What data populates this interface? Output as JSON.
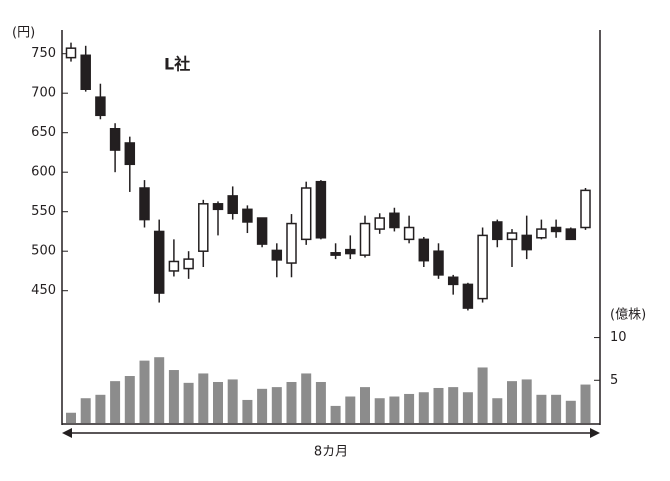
{
  "chart_data": {
    "type": "candlestick",
    "title": "L社",
    "y_label": "(円)",
    "y2_label": "(億株)",
    "x_label": "8カ月",
    "open": [
      745,
      748,
      695,
      655,
      637,
      580,
      525,
      475,
      478,
      500,
      560,
      570,
      553,
      542,
      501,
      485,
      515,
      588,
      498,
      502,
      495,
      528,
      548,
      515,
      515,
      500,
      467,
      458,
      440,
      537,
      515,
      520,
      517,
      530,
      528,
      530
    ],
    "high": [
      764,
      760,
      712,
      662,
      645,
      590,
      540,
      515,
      500,
      565,
      563,
      582,
      558,
      542,
      510,
      547,
      588,
      590,
      510,
      520,
      545,
      548,
      555,
      545,
      518,
      510,
      470,
      460,
      530,
      540,
      528,
      545,
      540,
      540,
      530,
      580
    ],
    "low": [
      740,
      702,
      667,
      600,
      575,
      530,
      435,
      468,
      465,
      480,
      520,
      540,
      523,
      505,
      467,
      467,
      508,
      515,
      490,
      490,
      492,
      522,
      525,
      510,
      480,
      465,
      445,
      425,
      435,
      505,
      480,
      490,
      515,
      517,
      515,
      527
    ],
    "close": [
      757,
      705,
      672,
      628,
      610,
      540,
      447,
      487,
      490,
      560,
      553,
      548,
      537,
      509,
      489,
      535,
      580,
      517,
      495,
      497,
      535,
      542,
      530,
      530,
      488,
      470,
      458,
      428,
      520,
      515,
      523,
      502,
      528,
      525,
      515,
      577
    ],
    "up_color": "#ffffff",
    "down_color": "#231f20",
    "ylim": [
      280,
      780
    ],
    "yticks": [
      450,
      500,
      550,
      600,
      650,
      700,
      750
    ],
    "volume": {
      "color": "#8c8c8c",
      "axis": "y2",
      "values": [
        1.2,
        2.9,
        3.3,
        4.9,
        5.5,
        7.3,
        7.7,
        6.2,
        4.7,
        5.8,
        4.8,
        5.1,
        2.7,
        4.0,
        4.2,
        4.8,
        5.8,
        4.8,
        2.0,
        3.1,
        4.2,
        2.9,
        3.1,
        3.4,
        3.6,
        4.1,
        4.2,
        3.6,
        6.5,
        2.9,
        4.9,
        5.1,
        3.3,
        3.3,
        2.6,
        4.5
      ]
    },
    "y2lim": [
      0,
      46
    ],
    "y2ticks": [
      5,
      10
    ]
  }
}
